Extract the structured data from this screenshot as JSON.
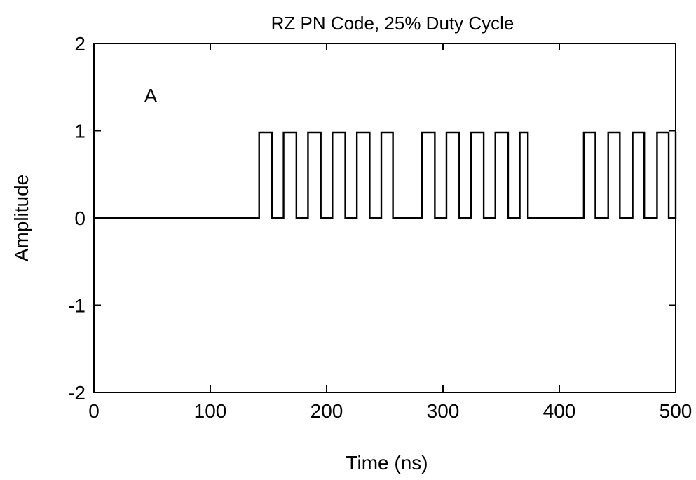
{
  "chart_data": {
    "type": "line",
    "title": "RZ PN Code, 25% Duty Cycle",
    "xlabel": "Time (ns)",
    "ylabel": "Amplitude",
    "xlim": [
      0,
      500
    ],
    "ylim": [
      -2,
      2
    ],
    "xticks": [
      "0",
      "100",
      "200",
      "300",
      "400",
      "500"
    ],
    "yticks": [
      "2",
      "1",
      "0",
      "-1",
      "-2"
    ],
    "annotation": "A",
    "grid": false,
    "series": [
      {
        "pulses": [
          [
            142,
            153
          ],
          [
            163,
            174
          ],
          [
            184,
            195
          ],
          [
            205,
            216
          ],
          [
            226,
            237
          ],
          [
            247,
            257
          ],
          [
            282,
            293
          ],
          [
            303,
            314
          ],
          [
            324,
            335
          ],
          [
            345,
            356
          ],
          [
            366,
            373
          ],
          [
            421,
            431
          ],
          [
            442,
            452
          ],
          [
            463,
            473
          ],
          [
            484,
            494
          ],
          [
            500,
            500
          ]
        ],
        "high": 0.98,
        "low": 0
      }
    ]
  }
}
